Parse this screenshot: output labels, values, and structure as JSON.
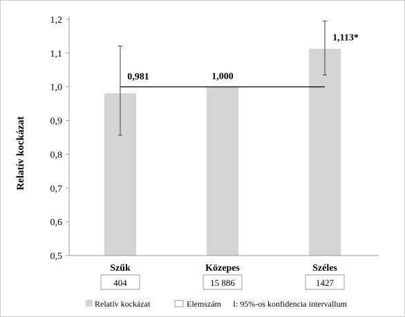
{
  "chart_data": {
    "type": "bar",
    "ylabel": "Relatív kockázat",
    "ylim": [
      0.5,
      1.2
    ],
    "ytick_step": 0.1,
    "ytick_labels": [
      "0,5",
      "0,6",
      "0,7",
      "0,8",
      "0,9",
      "1,0",
      "1,1",
      "1,2"
    ],
    "grid": false,
    "reference_line": 1.0,
    "categories": [
      "Szűk",
      "Közepes",
      "Széles"
    ],
    "counts": [
      "404",
      "15 886",
      "1427"
    ],
    "series": [
      {
        "name": "Relatív kockázat",
        "values": [
          0.981,
          1.0,
          1.113
        ],
        "data_labels": [
          "0,981",
          "1,000",
          "1,113*"
        ],
        "ci_low": [
          0.857,
          null,
          1.035
        ],
        "ci_high": [
          1.121,
          null,
          1.195
        ]
      }
    ],
    "colors": {
      "bar": "#d4d4d4",
      "line": "#000000",
      "error_bar": "#404040"
    },
    "legend": {
      "position": "bottom",
      "items": [
        "Relatív kockázat",
        "Elemszám",
        "I: 95%-os konfidencia  intervallum"
      ]
    }
  }
}
